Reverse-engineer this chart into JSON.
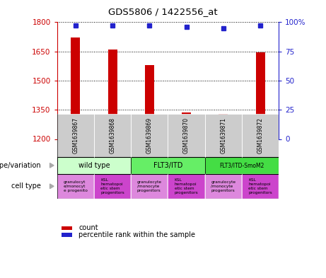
{
  "title": "GDS5806 / 1422556_at",
  "samples": [
    "GSM1639867",
    "GSM1639868",
    "GSM1639869",
    "GSM1639870",
    "GSM1639871",
    "GSM1639872"
  ],
  "counts": [
    1720,
    1660,
    1580,
    1335,
    1330,
    1645
  ],
  "percentiles": [
    97,
    97,
    97,
    96,
    95,
    97
  ],
  "ylim_left": [
    1200,
    1800
  ],
  "ylim_right": [
    0,
    100
  ],
  "yticks_left": [
    1200,
    1350,
    1500,
    1650,
    1800
  ],
  "yticks_right": [
    0,
    25,
    50,
    75,
    100
  ],
  "bar_color": "#cc0000",
  "dot_color": "#2222cc",
  "left_axis_color": "#cc0000",
  "right_axis_color": "#2222cc",
  "genotype_groups": [
    {
      "label": "wild type",
      "start": 0,
      "end": 2,
      "color": "#ccffcc"
    },
    {
      "label": "FLT3/ITD",
      "start": 2,
      "end": 4,
      "color": "#66ee66"
    },
    {
      "label": "FLT3/ITD-SmoM2",
      "start": 4,
      "end": 6,
      "color": "#44dd44"
    }
  ],
  "cell_types": [
    {
      "label": "granulocyt\ne/monocyt\ne progenito",
      "color": "#dd88dd"
    },
    {
      "label": "KSL\nhematopoi\netic stem\nprogenitors",
      "color": "#cc44cc"
    },
    {
      "label": "granulocyte\n/monocyte\nprogenitors",
      "color": "#dd88dd"
    },
    {
      "label": "KSL\nhematopoi\netic stem\nprogenitors",
      "color": "#cc44cc"
    },
    {
      "label": "granulocyte\n/monocyte\nprogenitors",
      "color": "#dd88dd"
    },
    {
      "label": "KSL\nhematopoi\netic stem\nprogenitors",
      "color": "#cc44cc"
    }
  ],
  "legend_count_color": "#cc0000",
  "legend_pct_color": "#2222cc",
  "sample_box_color": "#cccccc",
  "genotype_label": "genotype/variation",
  "celltype_label": "cell type"
}
